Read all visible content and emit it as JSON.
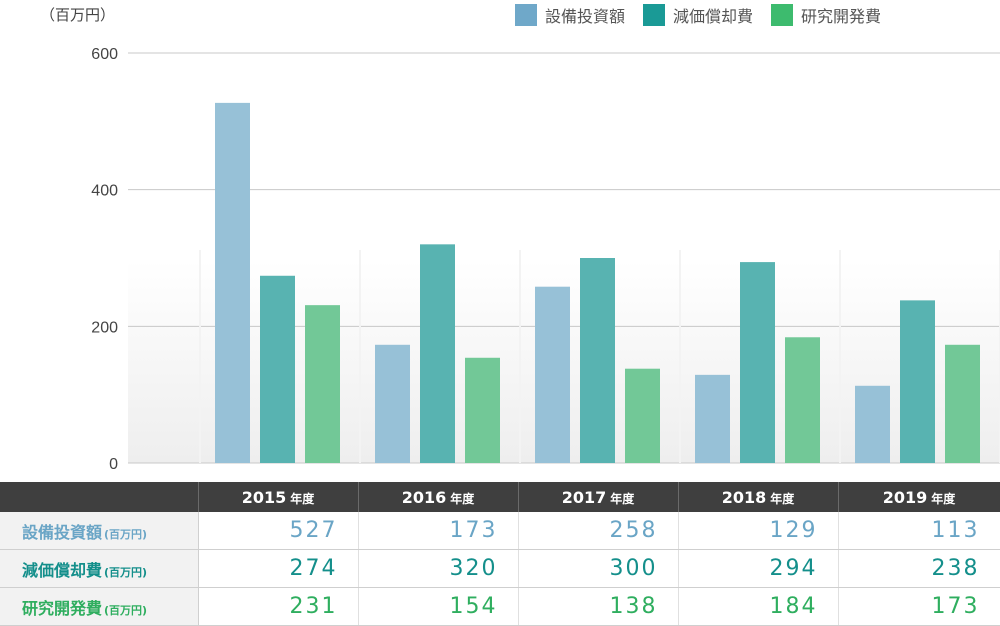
{
  "unit_label": "（百万円）",
  "legend": [
    {
      "label": "設備投資額",
      "color": "#6fa8c9"
    },
    {
      "label": "減価償却費",
      "color": "#1a9a96"
    },
    {
      "label": "研究開発費",
      "color": "#3dbb6e"
    }
  ],
  "chart_data": {
    "type": "bar",
    "categories": [
      "2015",
      "2016",
      "2017",
      "2018",
      "2019"
    ],
    "series": [
      {
        "name": "設備投資額",
        "values": [
          527,
          173,
          258,
          129,
          113
        ],
        "color": "#97c1d7"
      },
      {
        "name": "減価償却費",
        "values": [
          274,
          320,
          300,
          294,
          238
        ],
        "color": "#58b3b1"
      },
      {
        "name": "研究開発費",
        "values": [
          231,
          154,
          138,
          184,
          173
        ],
        "color": "#72c897"
      }
    ],
    "ylim": [
      0,
      600
    ],
    "yticks": [
      0,
      200,
      400,
      600
    ],
    "grid": true,
    "legend_position": "top-right"
  },
  "table": {
    "year_suffix": "年度",
    "years": [
      "2015",
      "2016",
      "2017",
      "2018",
      "2019"
    ],
    "rows": [
      {
        "label": "設備投資額",
        "unit": "(百万円)",
        "color": "#6aa5c6",
        "values": [
          "527",
          "173",
          "258",
          "129",
          "113"
        ]
      },
      {
        "label": "減価償却費",
        "unit": "(百万円)",
        "color": "#148f8b",
        "values": [
          "274",
          "320",
          "300",
          "294",
          "238"
        ]
      },
      {
        "label": "研究開発費",
        "unit": "(百万円)",
        "color": "#2fae5f",
        "values": [
          "231",
          "154",
          "138",
          "184",
          "173"
        ]
      }
    ]
  }
}
